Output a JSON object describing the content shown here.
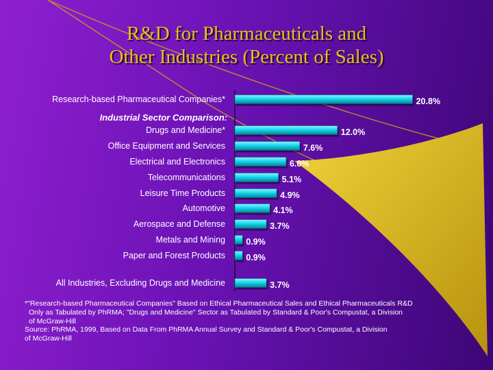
{
  "title": {
    "line1": "R&D for Pharmaceuticals and",
    "line2": "Other Industries (Percent of Sales)"
  },
  "colors": {
    "bar": "#14d8ee",
    "bar_dark": "#0a7f93",
    "value_label": "#ffffff",
    "category_label": "#ffffff",
    "title": "#e3c21a",
    "accent": "#d7b21a"
  },
  "chart_data": {
    "type": "bar",
    "orientation": "horizontal",
    "title": "R&D for Pharmaceuticals and Other Industries (Percent of Sales)",
    "xlabel": "",
    "ylabel": "",
    "xlim": [
      0,
      21
    ],
    "group_heading": "Industrial Sector Comparison:",
    "categories": [
      "Research-based Pharmaceutical Companies*",
      "Drugs and Medicine*",
      "Office Equipment and Services",
      "Electrical and Electronics",
      "Telecommunications",
      "Leisure Time Products",
      "Automotive",
      "Aerospace and Defense",
      "Metals and Mining",
      "Paper and Forest Products",
      "All Industries, Excluding Drugs and Medicine"
    ],
    "values": [
      20.8,
      12.0,
      7.6,
      6.0,
      5.1,
      4.9,
      4.1,
      3.7,
      0.9,
      0.9,
      3.7
    ],
    "value_labels": [
      "20.8%",
      "12.0%",
      "7.6%",
      "6.0%",
      "5.1%",
      "4.9%",
      "4.1%",
      "3.7%",
      "0.9%",
      "0.9%",
      "3.7%"
    ]
  },
  "footnote": {
    "line1": "*\"Research-based Pharmaceutical Companies\" Based on Ethical Pharmaceutical Sales and Ethical Pharmaceuticals R&D",
    "line2": "Only as Tabulated by PhRMA; \"Drugs and Medicine\" Sector as Tabulated by Standard & Poor's Compustat, a Division",
    "line3": "of McGraw-Hill",
    "line4": "Source: PhRMA, 1999, Based on Data From PhRMA Annual Survey and Standard & Poor's Compustat, a Division",
    "line5": "of McGraw-Hill"
  }
}
